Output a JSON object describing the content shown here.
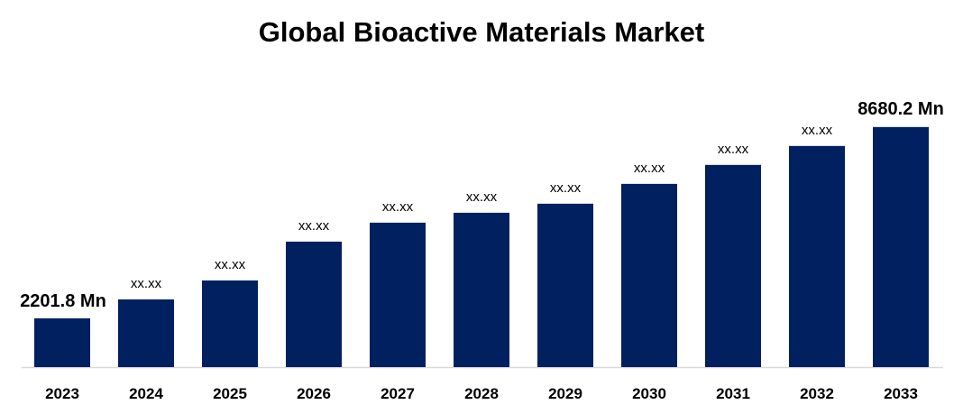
{
  "chart_data": {
    "type": "bar",
    "title": "Global Bioactive Materials Market",
    "xlabel": "",
    "ylabel": "",
    "categories": [
      "2023",
      "2024",
      "2025",
      "2026",
      "2027",
      "2028",
      "2029",
      "2030",
      "2031",
      "2032",
      "2033"
    ],
    "values": [
      2201.8,
      2843,
      3485,
      4799,
      5441,
      5777,
      6083,
      6755,
      7397,
      8039,
      8680.2
    ],
    "data_labels": [
      "2201.8 Mn",
      "xx.xx",
      "xx.xx",
      "xx.xx",
      "xx.xx",
      "xx.xx",
      "xx.xx",
      "xx.xx",
      "xx.xx",
      "xx.xx",
      "8680.2 Mn"
    ],
    "ylim": [
      550,
      9500
    ],
    "grid": false,
    "legend": "none",
    "bar_color": "#002060",
    "axis_color": "#d9d9d9"
  }
}
